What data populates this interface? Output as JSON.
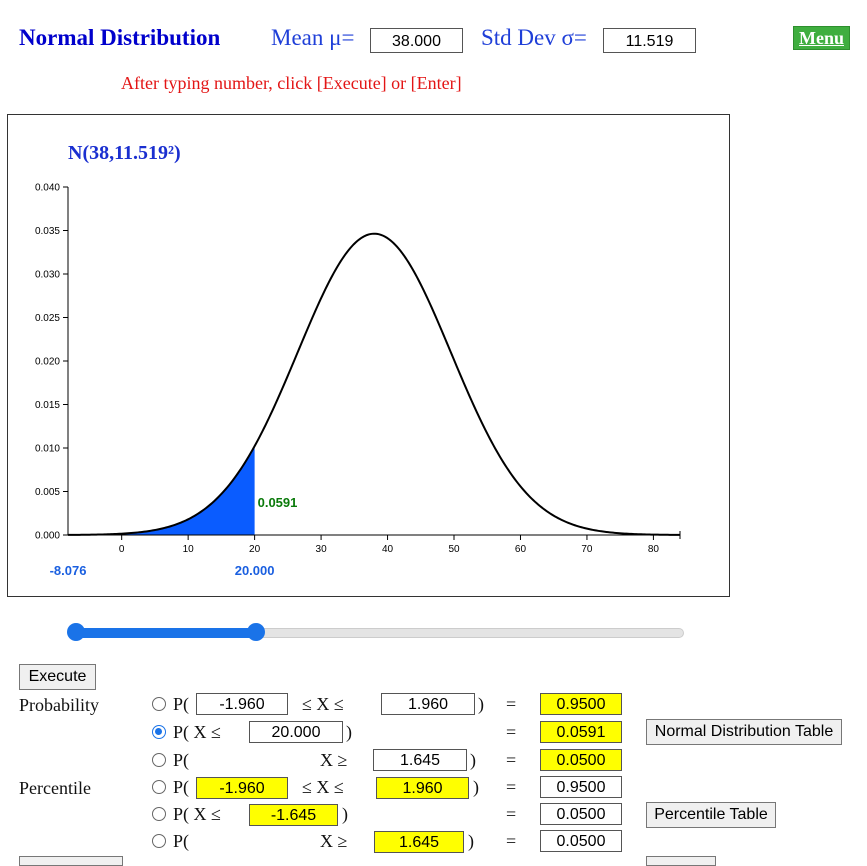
{
  "header": {
    "title": "Normal Distribution",
    "mean_label": "Mean  μ=",
    "mean_value": "38.000",
    "sd_label": "Std Dev  σ=",
    "sd_value": "11.519",
    "menu_label": "Menu",
    "note": "After typing number, click [Execute] or [Enter]"
  },
  "chart_data": {
    "type": "area",
    "title": "N(38,11.519²)",
    "mean": 38,
    "sd": 11.519,
    "xlim": [
      -8.076,
      84
    ],
    "ylim": [
      0,
      0.04
    ],
    "x_ticks": [
      0,
      10,
      20,
      30,
      40,
      50,
      60,
      70,
      80
    ],
    "y_ticks": [
      "0.000",
      "0.005",
      "0.010",
      "0.015",
      "0.020",
      "0.025",
      "0.030",
      "0.035",
      "0.040"
    ],
    "shaded_from": -8.076,
    "shaded_to": 20,
    "shaded_probability": "0.0591",
    "lower_marker": "-8.076",
    "upper_marker": "20.000",
    "colors": {
      "curve": "#000000",
      "shade": "#0a5cff",
      "prob_label": "#0a7a0a",
      "marker": "#1a5fe0"
    }
  },
  "slider": {
    "min": -8.076,
    "max": 84,
    "low": -8.076,
    "high": 20
  },
  "execute_label": "Execute",
  "probability": {
    "section_label": "Probability",
    "rows": [
      {
        "selected": false,
        "prefix": "P(",
        "lower": "-1.960",
        "op1": "≤  X  ≤",
        "upper": "1.960",
        "close": ")",
        "eq": "=",
        "result": "0.9500"
      },
      {
        "selected": true,
        "prefix": "P( X  ≤",
        "value": "20.000",
        "close": ")",
        "eq": "=",
        "result": "0.0591",
        "table_button": "Normal Distribution Table"
      },
      {
        "selected": false,
        "prefix": "P(",
        "op": "X  ≥",
        "value": "1.645",
        "close": ")",
        "eq": "=",
        "result": "0.0500"
      }
    ]
  },
  "percentile": {
    "section_label": "Percentile",
    "rows": [
      {
        "selected": false,
        "prefix": "P(",
        "lower": "-1.960",
        "op1": "≤  X  ≤",
        "upper": "1.960",
        "close": ")",
        "eq": "=",
        "result": "0.9500"
      },
      {
        "selected": false,
        "prefix": "P( X  ≤",
        "value": "-1.645",
        "close": ")",
        "eq": "=",
        "result": "0.0500",
        "table_button": "Percentile Table"
      },
      {
        "selected": false,
        "prefix": "P(",
        "op": "X  ≥",
        "value": "1.645",
        "close": ")",
        "eq": "=",
        "result": "0.0500"
      }
    ]
  }
}
